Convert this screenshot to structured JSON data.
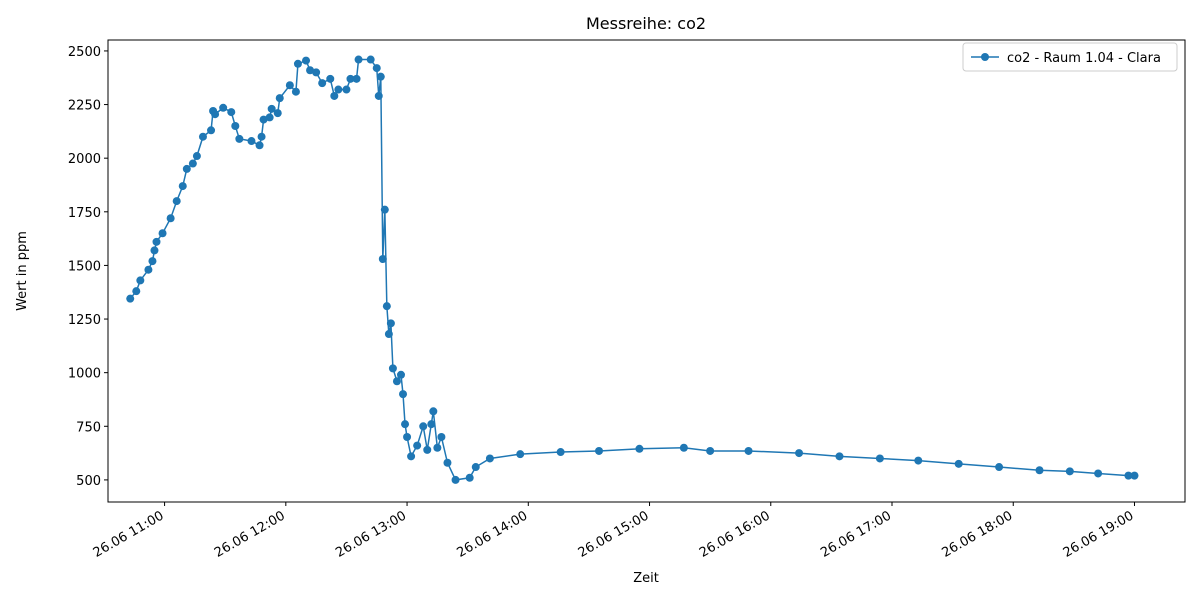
{
  "chart_data": {
    "type": "line",
    "title": "Messreihe: co2",
    "x_label": "Zeit",
    "y_label": "Wert in ppm",
    "x": [
      "26.06 10:43",
      "26.06 10:46",
      "26.06 10:48",
      "26.06 10:52",
      "26.06 10:54",
      "26.06 10:55",
      "26.06 10:56",
      "26.06 10:59",
      "26.06 11:03",
      "26.06 11:06",
      "26.06 11:09",
      "26.06 11:11",
      "26.06 11:14",
      "26.06 11:16",
      "26.06 11:19",
      "26.06 11:23",
      "26.06 11:24",
      "26.06 11:25",
      "26.06 11:29",
      "26.06 11:33",
      "26.06 11:35",
      "26.06 11:37",
      "26.06 11:43",
      "26.06 11:47",
      "26.06 11:48",
      "26.06 11:49",
      "26.06 11:52",
      "26.06 11:53",
      "26.06 11:56",
      "26.06 11:57",
      "26.06 12:02",
      "26.06 12:05",
      "26.06 12:06",
      "26.06 12:10",
      "26.06 12:12",
      "26.06 12:15",
      "26.06 12:18",
      "26.06 12:22",
      "26.06 12:24",
      "26.06 12:26",
      "26.06 12:30",
      "26.06 12:32",
      "26.06 12:35",
      "26.06 12:36",
      "26.06 12:42",
      "26.06 12:45",
      "26.06 12:46",
      "26.06 12:47",
      "26.06 12:48",
      "26.06 12:49",
      "26.06 12:50",
      "26.06 12:51",
      "26.06 12:52",
      "26.06 12:53",
      "26.06 12:55",
      "26.06 12:57",
      "26.06 12:58",
      "26.06 12:59",
      "26.06 13:00",
      "26.06 13:02",
      "26.06 13:05",
      "26.06 13:08",
      "26.06 13:10",
      "26.06 13:12",
      "26.06 13:13",
      "26.06 13:15",
      "26.06 13:17",
      "26.06 13:20",
      "26.06 13:24",
      "26.06 13:31",
      "26.06 13:34",
      "26.06 13:41",
      "26.06 13:56",
      "26.06 14:16",
      "26.06 14:35",
      "26.06 14:55",
      "26.06 15:17",
      "26.06 15:30",
      "26.06 15:49",
      "26.06 16:14",
      "26.06 16:34",
      "26.06 16:54",
      "26.06 17:13",
      "26.06 17:33",
      "26.06 17:53",
      "26.06 18:13",
      "26.06 18:28",
      "26.06 18:42",
      "26.06 18:57",
      "26.06 19:00"
    ],
    "series": [
      {
        "name": "co2 - Raum 1.04 - Clara",
        "color": "#1f77b4",
        "values": [
          1345,
          1380,
          1430,
          1480,
          1520,
          1570,
          1610,
          1650,
          1720,
          1800,
          1870,
          1950,
          1975,
          2010,
          2100,
          2130,
          2220,
          2205,
          2235,
          2215,
          2150,
          2090,
          2080,
          2060,
          2100,
          2180,
          2190,
          2230,
          2210,
          2280,
          2340,
          2310,
          2440,
          2455,
          2410,
          2400,
          2350,
          2370,
          2290,
          2320,
          2320,
          2370,
          2370,
          2460,
          2460,
          2420,
          2290,
          2380,
          1530,
          1760,
          1310,
          1180,
          1230,
          1020,
          960,
          990,
          900,
          760,
          700,
          610,
          660,
          750,
          640,
          760,
          820,
          650,
          700,
          580,
          500,
          510,
          560,
          600,
          620,
          630,
          635,
          645,
          650,
          635,
          635,
          625,
          610,
          600,
          590,
          575,
          560,
          545,
          540,
          530,
          520,
          520
        ]
      }
    ],
    "xlim": [
      "26.06 10:32",
      "26.06 19:25"
    ],
    "xticks": [
      "26.06 11:00",
      "26.06 12:00",
      "26.06 13:00",
      "26.06 14:00",
      "26.06 15:00",
      "26.06 16:00",
      "26.06 17:00",
      "26.06 18:00",
      "26.06 19:00"
    ],
    "ylim": [
      397,
      2551
    ],
    "yticks": [
      500,
      750,
      1000,
      1250,
      1500,
      1750,
      2000,
      2250,
      2500
    ],
    "legend": "upper right"
  }
}
